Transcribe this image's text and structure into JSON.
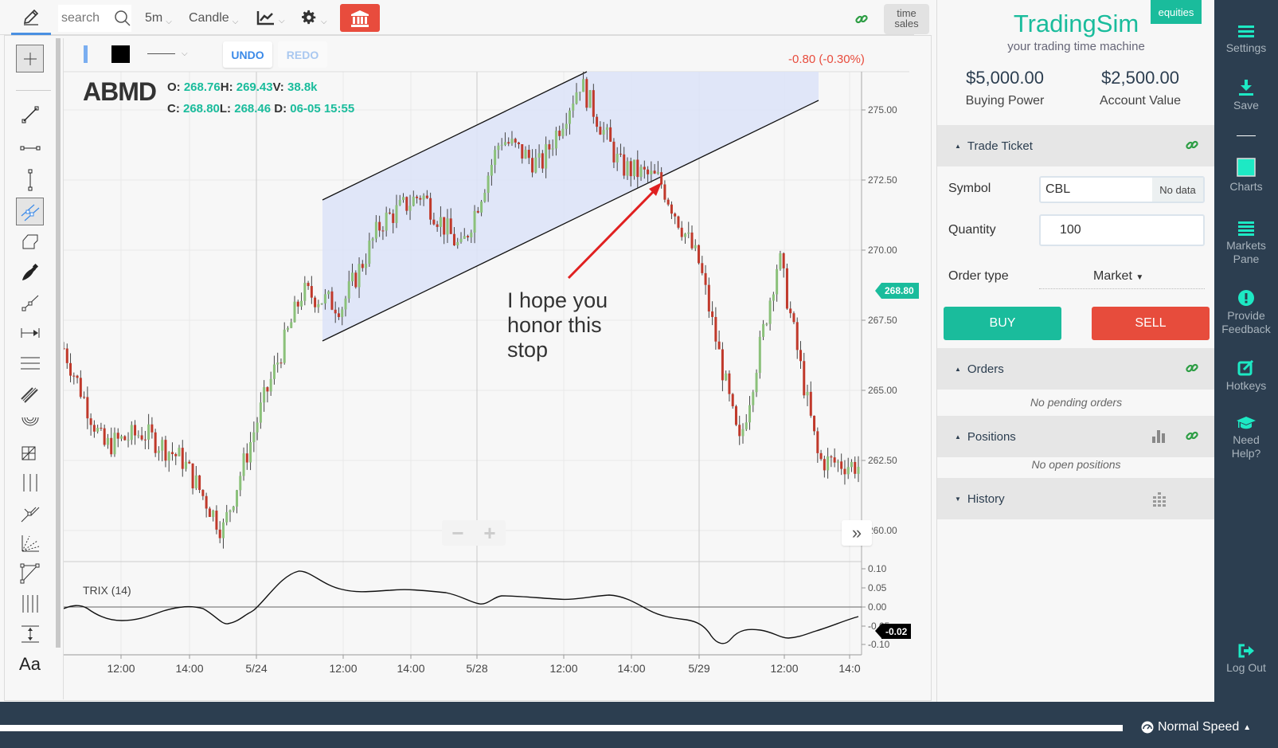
{
  "topbar": {
    "search_placeholder": "search",
    "interval": "5m",
    "chart_type": "Candle",
    "time_sales_line1": "time",
    "time_sales_line2": "sales"
  },
  "drawing_bar": {
    "undo": "UNDO",
    "redo": "REDO",
    "colors": {
      "stroke": "#7aaef0",
      "fill": "#000000"
    }
  },
  "quote": {
    "symbol": "ABMD",
    "change": "-0.80 (-0.30%)",
    "open_label": "O:",
    "open": "268.76",
    "high_label": "H:",
    "high": "269.43",
    "volume_label": "V:",
    "volume": "38.8k",
    "close_label": "C:",
    "close": "268.80",
    "low_label": "L:",
    "low": "268.46",
    "date_label": "D:",
    "date": "06-05 15:55",
    "last_price_tag": "268.80"
  },
  "annotation": {
    "line1": "I hope you",
    "line2": "honor this",
    "line3": "stop"
  },
  "indicator": {
    "label": "TRIX (14)",
    "value_tag": "-0.02"
  },
  "chart_data": [
    {
      "type": "candlestick",
      "title": "ABMD 5m",
      "x_tick_labels": [
        "12:00",
        "14:00",
        "5/24",
        "12:00",
        "14:00",
        "5/28",
        "12:00",
        "14:00",
        "5/29",
        "12:00",
        "14:0"
      ],
      "y_tick_labels": [
        "275.00",
        "272.50",
        "270.00",
        "267.50",
        "265.00",
        "262.50",
        "260.00"
      ],
      "ylim": [
        259.5,
        276.5
      ],
      "last_price": 268.8,
      "approx_close_path": [
        {
          "x": "start",
          "y": 266.5
        },
        {
          "x": "12:00",
          "y": 263.0
        },
        {
          "x": "13:00",
          "y": 263.5
        },
        {
          "x": "14:00",
          "y": 262.5
        },
        {
          "x": "14:30",
          "y": 260.0
        },
        {
          "x": "5/24",
          "y": 264.5
        },
        {
          "x": "5/24 10:30",
          "y": 268.5
        },
        {
          "x": "5/24 12:00",
          "y": 268.0
        },
        {
          "x": "5/24 13:00",
          "y": 271.0
        },
        {
          "x": "5/24 14:00",
          "y": 272.0
        },
        {
          "x": "5/24 15:30",
          "y": 270.0
        },
        {
          "x": "5/28",
          "y": 274.0
        },
        {
          "x": "5/28 11:00",
          "y": 273.0
        },
        {
          "x": "5/28 13:00",
          "y": 276.0
        },
        {
          "x": "5/28 14:00",
          "y": 273.0
        },
        {
          "x": "5/28 14:45",
          "y": 272.5
        },
        {
          "x": "5/28 15:30",
          "y": 269.5
        },
        {
          "x": "5/29 09:45",
          "y": 263.0
        },
        {
          "x": "5/29 10:15",
          "y": 269.8
        },
        {
          "x": "5/29 12:00",
          "y": 262.5
        },
        {
          "x": "5/29 14:00",
          "y": 262.3
        }
      ],
      "drawings": {
        "channel": {
          "upper": [
            [
              405,
              251
            ],
            [
              737,
              90
            ]
          ],
          "lower": [
            [
              405,
              428
            ],
            [
              1028,
              126
            ]
          ],
          "fill": "#dde3f7"
        },
        "arrow": {
          "from": [
            714,
            349
          ],
          "to": [
            830,
            231
          ],
          "color": "#e02020"
        }
      },
      "grid": true
    },
    {
      "type": "line",
      "title": "TRIX (14)",
      "y_tick_labels": [
        "0.10",
        "0.05",
        "0.00",
        "-0.05",
        "-0.10"
      ],
      "ylim": [
        -0.12,
        0.12
      ],
      "series": [
        {
          "name": "TRIX",
          "values_by_label": [
            {
              "x": "start",
              "y": 0.0
            },
            {
              "x": "12:00",
              "y": -0.03
            },
            {
              "x": "14:00",
              "y": -0.04
            },
            {
              "x": "5/24",
              "y": 0.0
            },
            {
              "x": "5/24 10:30",
              "y": 0.105
            },
            {
              "x": "12:00",
              "y": 0.045
            },
            {
              "x": "14:00",
              "y": 0.05
            },
            {
              "x": "5/28",
              "y": 0.005
            },
            {
              "x": "5/28 10:00",
              "y": 0.03
            },
            {
              "x": "5/28 13:00",
              "y": 0.025
            },
            {
              "x": "14:00",
              "y": 0.005
            },
            {
              "x": "5/29",
              "y": -0.06
            },
            {
              "x": "5/29 10:00",
              "y": -0.105
            },
            {
              "x": "5/29 11:00",
              "y": -0.06
            },
            {
              "x": "12:00",
              "y": -0.085
            },
            {
              "x": "end",
              "y": -0.02
            }
          ]
        }
      ],
      "last_value": -0.02
    }
  ],
  "panel": {
    "badge": "equities",
    "brand": "TradingSim",
    "tagline": "your trading time machine",
    "buying_power": "$5,000.00",
    "buying_power_label": "Buying Power",
    "account_value": "$2,500.00",
    "account_value_label": "Account Value",
    "trade_ticket": "Trade Ticket",
    "symbol_label": "Symbol",
    "symbol_value": "CBL",
    "symbol_status": "No data",
    "quantity_label": "Quantity",
    "quantity_value": "100",
    "order_type_label": "Order type",
    "order_type_value": "Market",
    "buy": "BUY",
    "sell": "SELL",
    "orders": "Orders",
    "orders_empty": "No pending orders",
    "positions": "Positions",
    "positions_empty": "No open positions",
    "history": "History"
  },
  "nav": {
    "settings": "Settings",
    "save": "Save",
    "charts": "Charts",
    "markets_1": "Markets",
    "markets_2": "Pane",
    "feedback_1": "Provide",
    "feedback_2": "Feedback",
    "hotkeys": "Hotkeys",
    "help_1": "Need",
    "help_2": "Help?",
    "logout": "Log Out"
  },
  "footer": {
    "speed": "Normal Speed"
  },
  "colors": {
    "accent": "#1abc9c",
    "sell": "#e74c3c",
    "nav_bg": "#2c3e50",
    "up_candle": "#8bc17a",
    "down_candle": "#c0392b"
  }
}
